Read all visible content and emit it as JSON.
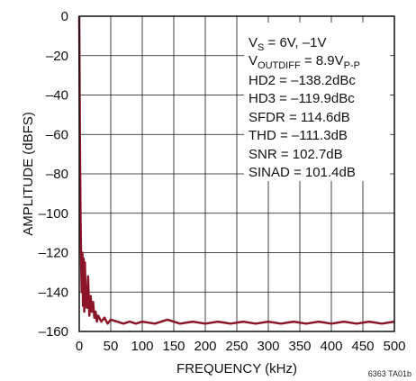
{
  "chart_data": {
    "type": "line",
    "title": "",
    "xlabel": "FREQUENCY (kHz)",
    "ylabel": "AMPLITUDE (dBFS)",
    "xlim": [
      0,
      500
    ],
    "ylim": [
      -160,
      0
    ],
    "xticks": [
      0,
      50,
      100,
      150,
      200,
      250,
      300,
      350,
      400,
      450,
      500
    ],
    "yticks": [
      0,
      -20,
      -40,
      -60,
      -80,
      -100,
      -120,
      -140,
      -160
    ],
    "xtick_labels": [
      "0",
      "50",
      "100",
      "150",
      "200",
      "250",
      "300",
      "350",
      "400",
      "450",
      "500"
    ],
    "ytick_labels": [
      "0",
      "–20",
      "–40",
      "–60",
      "–80",
      "–100",
      "–120",
      "–140",
      "–160"
    ],
    "grid": true,
    "series_color": "#8b1428",
    "series": [
      {
        "x": [
          0,
          1,
          2,
          3,
          4,
          5,
          6,
          7,
          8,
          9,
          10,
          12,
          14,
          16,
          18,
          20,
          22,
          24,
          26,
          28,
          30,
          35,
          40,
          45,
          50,
          60,
          70,
          80,
          90,
          100,
          120,
          140,
          160,
          180,
          200,
          220,
          240,
          260,
          280,
          300,
          320,
          340,
          360,
          380,
          400,
          420,
          440,
          460,
          480,
          500
        ],
        "y": [
          0,
          -60,
          -100,
          -125,
          -140,
          -120,
          -147,
          -123,
          -150,
          -125,
          -140,
          -148,
          -132,
          -152,
          -142,
          -150,
          -145,
          -153,
          -150,
          -155,
          -152,
          -155,
          -153,
          -156,
          -154,
          -155,
          -156,
          -155,
          -156,
          -155,
          -156,
          -154,
          -156,
          -155,
          -156,
          -155,
          -156,
          -155,
          -156,
          -155,
          -156,
          -155,
          -156,
          -155,
          -156,
          -155,
          -156,
          -155,
          -156,
          -155
        ]
      }
    ],
    "annotation": {
      "vs_main": "V",
      "vs_sub": "S",
      "vs_rest": " = 6V, –1V",
      "vout_main": "V",
      "vout_sub": "OUTDIFF",
      "vout_rest": " = 8.9V",
      "vout_sub2": "P-P",
      "lines": [
        "HD2 = –138.2dBc",
        "HD3 = –119.9dBc",
        "SFDR = 114.6dB",
        "THD = –111.3dB",
        "SNR = 102.7dB",
        "SINAD = 101.4dB"
      ]
    },
    "figure_id": "6363 TA01b"
  }
}
